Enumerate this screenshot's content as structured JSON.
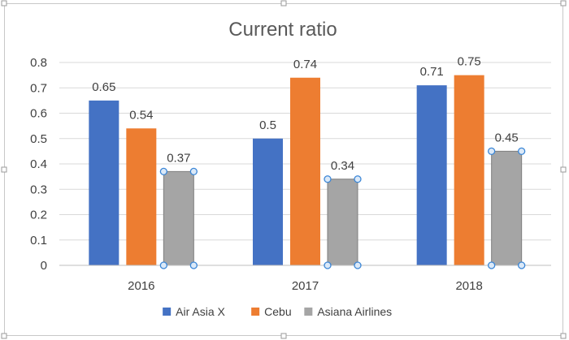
{
  "chart_data": {
    "type": "bar",
    "title": "Current ratio",
    "categories": [
      "2016",
      "2017",
      "2018"
    ],
    "series": [
      {
        "name": "Air Asia X",
        "color": "#4472C4",
        "values": [
          0.65,
          0.5,
          0.71
        ],
        "labels": [
          "0.65",
          "0.5",
          "0.71"
        ]
      },
      {
        "name": "Cebu",
        "color": "#ED7D31",
        "values": [
          0.54,
          0.74,
          0.75
        ],
        "labels": [
          "0.54",
          "0.74",
          "0.75"
        ]
      },
      {
        "name": "Asiana Airlines",
        "color": "#A5A5A5",
        "values": [
          0.37,
          0.34,
          0.45
        ],
        "labels": [
          "0.37",
          "0.34",
          "0.45"
        ],
        "selected": true
      }
    ],
    "ylim": [
      0,
      0.8
    ],
    "yticks": [
      "0",
      "0.1",
      "0.2",
      "0.3",
      "0.4",
      "0.5",
      "0.6",
      "0.7",
      "0.8"
    ],
    "ytick_values": [
      0,
      0.1,
      0.2,
      0.3,
      0.4,
      0.5,
      0.6,
      0.7,
      0.8
    ],
    "grid": true,
    "legend": "bottom"
  }
}
